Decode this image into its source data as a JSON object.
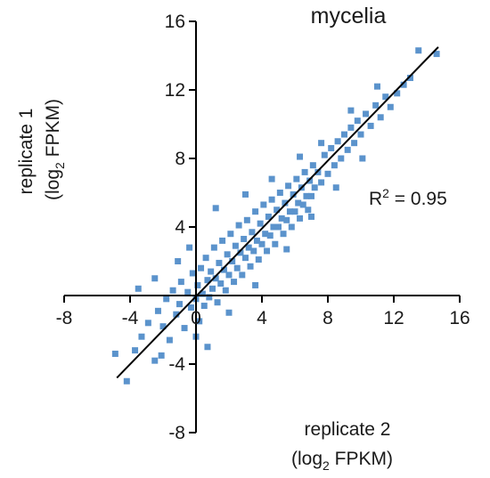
{
  "chart_data": {
    "type": "scatter",
    "title": "mycelia",
    "xlabel": {
      "main": "replicate 2",
      "paren_open": "(log",
      "subscript": "2",
      "rest": " FPKM)"
    },
    "ylabel": {
      "main": "replicate 1",
      "paren_open": "(log",
      "subscript": "2",
      "rest": " FPKM)"
    },
    "xlim": [
      -8,
      16
    ],
    "ylim": [
      -8,
      16
    ],
    "x_ticks": [
      -8,
      -4,
      0,
      4,
      8,
      12,
      16
    ],
    "y_ticks": [
      -8,
      -4,
      0,
      4,
      8,
      12,
      16
    ],
    "x_tick_labels": [
      "-8",
      "-4",
      "0",
      "4",
      "8",
      "12",
      "16"
    ],
    "y_tick_labels": [
      "-8",
      "-4",
      "0",
      "4",
      "8",
      "12",
      "16"
    ],
    "annotation": {
      "prefix": "R",
      "sup": "2",
      "rest": " = 0.95"
    },
    "regression_line": {
      "x": [
        -4.8,
        14.7
      ],
      "y": [
        -4.8,
        14.5
      ]
    },
    "marker_color": "#5b93cc",
    "line_color": "#000000",
    "grid": false,
    "legend": "none",
    "series": [
      {
        "points": [
          [
            -4.9,
            -3.4
          ],
          [
            -4.2,
            -5.0
          ],
          [
            -3.7,
            -3.2
          ],
          [
            -3.3,
            -2.4
          ],
          [
            -2.9,
            -1.6
          ],
          [
            -2.5,
            -3.8
          ],
          [
            -2.3,
            -0.9
          ],
          [
            -2.0,
            -1.8
          ],
          [
            -1.8,
            -0.2
          ],
          [
            -1.6,
            -2.6
          ],
          [
            -1.4,
            0.3
          ],
          [
            -1.2,
            -1.1
          ],
          [
            -1.0,
            -0.5
          ],
          [
            -0.9,
            0.8
          ],
          [
            -0.7,
            -1.9
          ],
          [
            -0.5,
            0.2
          ],
          [
            -0.3,
            -0.7
          ],
          [
            -0.2,
            1.3
          ],
          [
            0.0,
            -0.2
          ],
          [
            0.1,
            0.6
          ],
          [
            0.2,
            -1.5
          ],
          [
            0.3,
            1.6
          ],
          [
            0.4,
            0.1
          ],
          [
            0.5,
            -0.6
          ],
          [
            0.6,
            2.2
          ],
          [
            0.7,
            0.9
          ],
          [
            0.8,
            -0.1
          ],
          [
            0.9,
            1.4
          ],
          [
            1.0,
            0.4
          ],
          [
            1.1,
            2.8
          ],
          [
            1.2,
            1.0
          ],
          [
            1.3,
            -0.4
          ],
          [
            1.4,
            1.9
          ],
          [
            1.5,
            0.7
          ],
          [
            1.6,
            3.2
          ],
          [
            1.7,
            1.5
          ],
          [
            1.8,
            0.3
          ],
          [
            1.9,
            2.4
          ],
          [
            2.0,
            1.2
          ],
          [
            2.1,
            3.6
          ],
          [
            2.2,
            2.0
          ],
          [
            2.3,
            0.8
          ],
          [
            2.4,
            2.9
          ],
          [
            2.5,
            1.6
          ],
          [
            2.6,
            4.1
          ],
          [
            2.7,
            2.5
          ],
          [
            2.8,
            1.2
          ],
          [
            2.9,
            3.3
          ],
          [
            3.0,
            2.2
          ],
          [
            3.1,
            4.4
          ],
          [
            3.2,
            2.8
          ],
          [
            3.3,
            1.7
          ],
          [
            3.4,
            3.7
          ],
          [
            3.5,
            2.6
          ],
          [
            3.6,
            4.9
          ],
          [
            3.7,
            3.2
          ],
          [
            3.8,
            2.1
          ],
          [
            3.9,
            4.2
          ],
          [
            4.0,
            3.0
          ],
          [
            4.1,
            5.3
          ],
          [
            4.2,
            3.6
          ],
          [
            4.3,
            2.6
          ],
          [
            4.4,
            4.6
          ],
          [
            4.5,
            3.5
          ],
          [
            4.6,
            5.6
          ],
          [
            4.7,
            4.0
          ],
          [
            4.8,
            3.0
          ],
          [
            4.9,
            5.0
          ],
          [
            5.0,
            4.0
          ],
          [
            5.1,
            6.0
          ],
          [
            5.2,
            4.5
          ],
          [
            5.3,
            3.6
          ],
          [
            5.4,
            5.4
          ],
          [
            5.5,
            4.4
          ],
          [
            5.6,
            6.4
          ],
          [
            5.7,
            4.9
          ],
          [
            5.8,
            4.0
          ],
          [
            5.9,
            5.9
          ],
          [
            6.0,
            4.9
          ],
          [
            6.1,
            6.8
          ],
          [
            6.2,
            5.4
          ],
          [
            6.3,
            4.5
          ],
          [
            6.4,
            6.3
          ],
          [
            6.5,
            5.3
          ],
          [
            6.6,
            7.2
          ],
          [
            6.7,
            5.8
          ],
          [
            6.8,
            5.0
          ],
          [
            6.9,
            6.7
          ],
          [
            7.0,
            5.8
          ],
          [
            7.1,
            7.6
          ],
          [
            7.2,
            6.3
          ],
          [
            7.4,
            7.2
          ],
          [
            7.6,
            6.6
          ],
          [
            7.8,
            8.2
          ],
          [
            8.0,
            7.1
          ],
          [
            8.2,
            8.6
          ],
          [
            8.4,
            7.6
          ],
          [
            8.6,
            9.0
          ],
          [
            8.8,
            8.0
          ],
          [
            9.0,
            9.4
          ],
          [
            9.2,
            8.5
          ],
          [
            9.4,
            9.8
          ],
          [
            9.6,
            8.9
          ],
          [
            9.8,
            10.2
          ],
          [
            10.0,
            9.4
          ],
          [
            10.3,
            10.6
          ],
          [
            10.6,
            9.9
          ],
          [
            10.9,
            11.1
          ],
          [
            11.2,
            10.4
          ],
          [
            11.5,
            11.6
          ],
          [
            11.8,
            11.0
          ],
          [
            12.2,
            11.8
          ],
          [
            12.6,
            12.3
          ],
          [
            13.0,
            12.7
          ],
          [
            13.5,
            14.3
          ],
          [
            14.6,
            14.1
          ],
          [
            -2.5,
            1.0
          ],
          [
            -0.4,
            2.8
          ],
          [
            0.7,
            -3.0
          ],
          [
            1.2,
            5.1
          ],
          [
            2.0,
            -1.0
          ],
          [
            3.0,
            5.9
          ],
          [
            3.6,
            0.6
          ],
          [
            4.6,
            6.8
          ],
          [
            5.5,
            2.7
          ],
          [
            6.3,
            8.1
          ],
          [
            7.0,
            4.6
          ],
          [
            7.6,
            8.9
          ],
          [
            8.5,
            6.3
          ],
          [
            9.4,
            10.8
          ],
          [
            10.1,
            8.0
          ],
          [
            11.0,
            12.2
          ],
          [
            -1.1,
            2.0
          ],
          [
            -3.5,
            0.4
          ],
          [
            -2.1,
            -3.5
          ],
          [
            0.0,
            -2.4
          ]
        ]
      }
    ]
  }
}
